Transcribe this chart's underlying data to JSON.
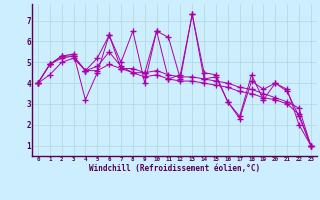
{
  "xlabel": "Windchill (Refroidissement éolien,°C)",
  "bg_color": "#cceeff",
  "line_color": "#aa00aa",
  "grid_color": "#b0d8d8",
  "xlim": [
    -0.5,
    23.5
  ],
  "ylim": [
    0.5,
    7.8
  ],
  "xticks": [
    0,
    1,
    2,
    3,
    4,
    5,
    6,
    7,
    8,
    9,
    10,
    11,
    12,
    13,
    14,
    15,
    16,
    17,
    18,
    19,
    20,
    21,
    22,
    23
  ],
  "yticks": [
    1,
    2,
    3,
    4,
    5,
    6,
    7
  ],
  "series": [
    [
      4.0,
      4.9,
      5.3,
      5.3,
      4.6,
      5.2,
      6.3,
      5.0,
      6.5,
      4.0,
      6.5,
      6.2,
      4.2,
      7.3,
      4.2,
      4.3,
      3.1,
      2.3,
      4.1,
      3.7,
      4.0,
      3.6,
      2.4,
      1.0
    ],
    [
      4.0,
      4.9,
      5.2,
      5.3,
      4.6,
      4.8,
      5.5,
      4.8,
      4.5,
      4.5,
      4.6,
      4.4,
      4.3,
      4.3,
      4.2,
      4.1,
      4.0,
      3.8,
      3.7,
      3.5,
      3.3,
      3.1,
      2.8,
      1.0
    ],
    [
      4.0,
      4.4,
      5.0,
      5.2,
      4.6,
      4.6,
      4.9,
      4.7,
      4.5,
      4.3,
      4.4,
      4.2,
      4.1,
      4.1,
      4.0,
      3.9,
      3.8,
      3.6,
      3.5,
      3.3,
      3.2,
      3.0,
      2.5,
      1.0
    ],
    [
      4.0,
      4.9,
      5.3,
      5.4,
      3.2,
      4.5,
      6.3,
      4.7,
      4.7,
      4.5,
      6.5,
      4.2,
      4.4,
      7.3,
      4.5,
      4.4,
      3.1,
      2.4,
      4.4,
      3.2,
      4.0,
      3.7,
      2.0,
      1.0
    ]
  ]
}
